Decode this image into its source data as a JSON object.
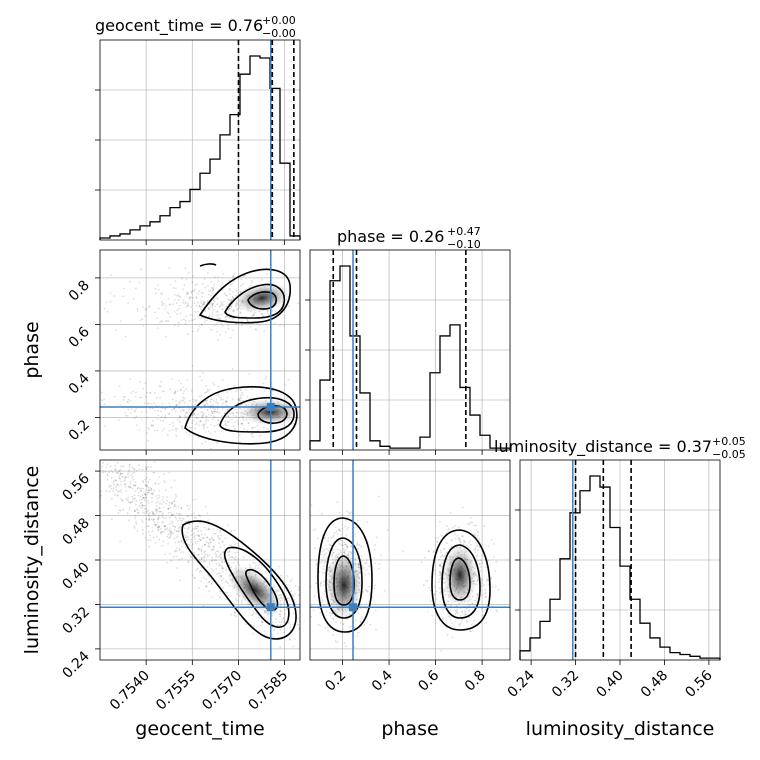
{
  "chart_data": {
    "type": "corner",
    "parameters": [
      "geocent_time",
      "phase",
      "luminosity_distance"
    ],
    "truths": {
      "geocent_time": 0.75805,
      "phase": 0.245,
      "luminosity_distance": 0.315
    },
    "titles": {
      "geocent_time": {
        "name": "geocent_time",
        "value": "0.76",
        "plus": "+0.00",
        "minus": "−0.00"
      },
      "phase": {
        "name": "phase",
        "value": "0.26",
        "plus": "+0.47",
        "minus": "−0.10"
      },
      "luminosity_distance": {
        "name": "luminosity_distance",
        "value": "0.37",
        "plus": "+0.05",
        "minus": "−0.05"
      }
    },
    "axes": {
      "geocent_time": {
        "range": [
          0.7525,
          0.759
        ],
        "ticks": [
          "0.7540",
          "0.7555",
          "0.7570",
          "0.7585"
        ]
      },
      "phase": {
        "range": [
          0.06,
          0.92
        ],
        "ticks": [
          "0.2",
          "0.4",
          "0.6",
          "0.8"
        ]
      },
      "luminosity_distance": {
        "range": [
          0.22,
          0.58
        ],
        "ticks": [
          "0.24",
          "0.32",
          "0.40",
          "0.48",
          "0.56"
        ]
      }
    },
    "quantiles": {
      "geocent_time": [
        0.757,
        0.7581,
        0.7588
      ],
      "phase": [
        0.16,
        0.26,
        0.73
      ],
      "luminosity_distance": [
        0.32,
        0.37,
        0.42
      ]
    },
    "hist_1d": {
      "geocent_time": {
        "edges_start": 0.7525,
        "bin_width": 0.000325,
        "counts": [
          0.01,
          0.02,
          0.03,
          0.05,
          0.07,
          0.09,
          0.12,
          0.16,
          0.19,
          0.25,
          0.33,
          0.4,
          0.52,
          0.62,
          0.82,
          0.91,
          0.9,
          0.75,
          0.38,
          0.02
        ]
      },
      "phase": {
        "edges_start": 0.06,
        "bin_width": 0.043,
        "counts": [
          0.05,
          0.38,
          0.92,
          1.0,
          0.62,
          0.31,
          0.05,
          0.02,
          0.01,
          0.01,
          0.01,
          0.07,
          0.42,
          0.62,
          0.68,
          0.34,
          0.19,
          0.08,
          0.01,
          0.01
        ]
      },
      "luminosity_distance": {
        "edges_start": 0.22,
        "bin_width": 0.018,
        "counts": [
          0.05,
          0.12,
          0.21,
          0.33,
          0.55,
          0.8,
          0.92,
          1.0,
          0.94,
          0.72,
          0.51,
          0.33,
          0.2,
          0.12,
          0.07,
          0.04,
          0.03,
          0.02,
          0.01,
          0.01
        ]
      }
    }
  },
  "labels": {
    "x": [
      "geocent_time",
      "phase",
      "luminosity_distance"
    ],
    "y": [
      "phase",
      "luminosity_distance"
    ]
  }
}
